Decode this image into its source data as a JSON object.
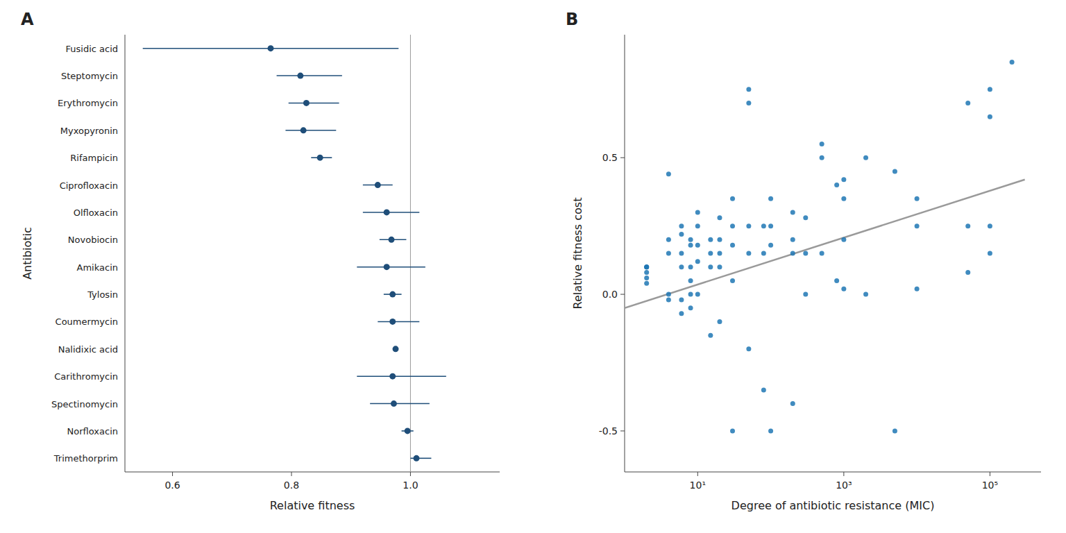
{
  "chart_data": [
    {
      "type": "dot",
      "orientation": "horizontal",
      "title": "A",
      "xlabel": "Relative fitness",
      "ylabel": "Antibiotic",
      "categories": [
        "Fusidic acid",
        "Steptomycin",
        "Erythromycin",
        "Myxopyronin",
        "Rifampicin",
        "Ciprofloxacin",
        "Olfloxacin",
        "Novobiocin",
        "Amikacin",
        "Tylosin",
        "Coumermycin",
        "Nalidixic acid",
        "Carithromycin",
        "Spectinomycin",
        "Norfloxacin",
        "Trimethorprim"
      ],
      "values": [
        0.765,
        0.815,
        0.825,
        0.82,
        0.848,
        0.945,
        0.96,
        0.968,
        0.96,
        0.97,
        0.97,
        0.975,
        0.97,
        0.972,
        0.995,
        1.01
      ],
      "errors_low": [
        0.215,
        0.04,
        0.03,
        0.03,
        0.015,
        0.025,
        0.04,
        0.02,
        0.05,
        0.015,
        0.025,
        0.0,
        0.06,
        0.04,
        0.01,
        0.01
      ],
      "errors_high": [
        0.215,
        0.07,
        0.055,
        0.055,
        0.02,
        0.025,
        0.055,
        0.025,
        0.065,
        0.015,
        0.045,
        0.0,
        0.09,
        0.06,
        0.01,
        0.025
      ],
      "ref_line_x": 1.0,
      "xlim": [
        0.52,
        1.15
      ],
      "xticks": [
        0.6,
        0.8,
        {
          "value": 1.0,
          "label": "1.0"
        }
      ]
    },
    {
      "type": "scatter",
      "title": "B",
      "log": "x",
      "xlabel": "Degree of antibiotic resistance (MIC)",
      "ylabel": "Relative fitness cost",
      "x": [
        2.0,
        2.0,
        2.0,
        2.0,
        2.0,
        2.0,
        4.0,
        4.0,
        4.0,
        4.0,
        4.0,
        6.0,
        6.0,
        6.0,
        6.0,
        6.0,
        6.0,
        8.0,
        8.0,
        8.0,
        8.0,
        8.0,
        8.0,
        10.0,
        10.0,
        10.0,
        10.0,
        10.0,
        15.0,
        15.0,
        15.0,
        15.0,
        20.0,
        20.0,
        20.0,
        20.0,
        20.0,
        30.0,
        30.0,
        30.0,
        30.0,
        30.0,
        50.0,
        50.0,
        50.0,
        50.0,
        50.0,
        80.0,
        80.0,
        80.0,
        100.0,
        100.0,
        100.0,
        100.0,
        200.0,
        200.0,
        200.0,
        200.0,
        300.0,
        300.0,
        300.0,
        500.0,
        500.0,
        500.0,
        800.0,
        800.0,
        1000.0,
        1000.0,
        1000.0,
        1000.0,
        2000.0,
        2000.0,
        5000.0,
        5000.0,
        10000.0,
        10000.0,
        10000.0,
        50000.0,
        50000.0,
        50000.0,
        100000.0,
        100000.0,
        100000.0,
        100000.0,
        200000.0
      ],
      "values": [
        0.1,
        0.1,
        0.1,
        0.08,
        0.06,
        0.04,
        0.44,
        0.2,
        0.15,
        0.0,
        -0.02,
        0.25,
        0.22,
        0.15,
        0.1,
        -0.02,
        -0.07,
        0.2,
        0.18,
        0.1,
        0.05,
        0.0,
        -0.05,
        0.3,
        0.25,
        0.18,
        0.12,
        0.0,
        0.2,
        0.15,
        0.1,
        -0.15,
        0.28,
        0.2,
        0.15,
        0.1,
        -0.1,
        0.35,
        0.25,
        0.18,
        0.05,
        -0.5,
        0.75,
        0.7,
        0.25,
        0.15,
        -0.2,
        0.25,
        0.15,
        -0.35,
        0.35,
        0.25,
        0.18,
        -0.5,
        0.3,
        0.2,
        0.15,
        -0.4,
        0.28,
        0.15,
        0.0,
        0.55,
        0.5,
        0.15,
        0.4,
        0.05,
        0.42,
        0.35,
        0.2,
        0.02,
        0.5,
        0.0,
        0.45,
        -0.5,
        0.35,
        0.25,
        0.02,
        0.7,
        0.25,
        0.08,
        0.75,
        0.65,
        0.25,
        0.15,
        0.85
      ],
      "fit": {
        "x": [
          1.0,
          300000.0
        ],
        "values": [
          -0.05,
          0.42
        ]
      },
      "xlim": [
        1.0,
        500000.0
      ],
      "ylim": [
        -0.65,
        0.95
      ],
      "xticks": [
        {
          "value": 10,
          "label": "10¹"
        },
        {
          "value": 1000,
          "label": "10³"
        },
        {
          "value": 100000,
          "label": "10⁵"
        }
      ],
      "yticks": [
        -0.5,
        {
          "value": 0.0,
          "label": "0.0"
        },
        0.5
      ]
    }
  ]
}
